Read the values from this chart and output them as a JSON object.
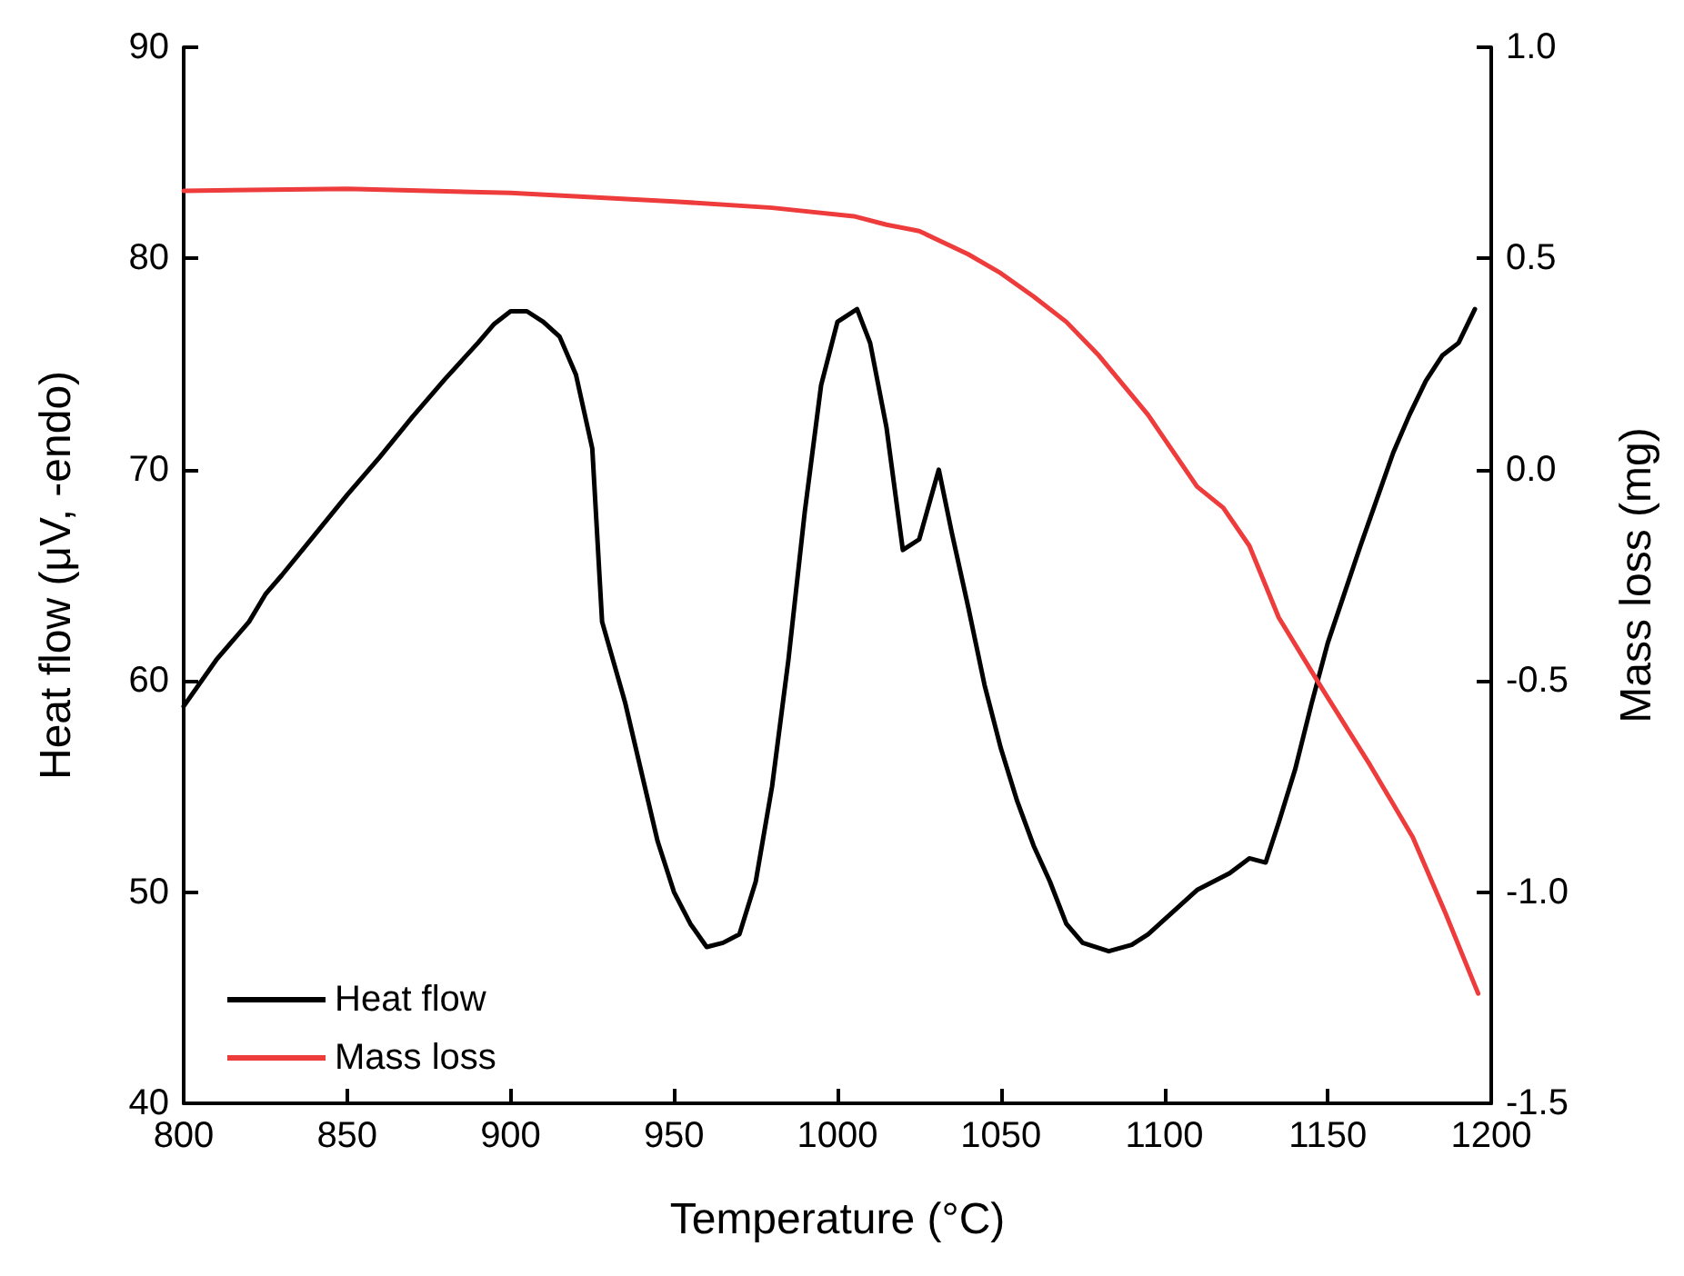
{
  "chart_data": {
    "type": "line",
    "xlabel": "Temperature (°C)",
    "ylabel": "Heat flow (μV, -endo)",
    "y2label": "Mass loss (mg)",
    "xlim": [
      800,
      1200
    ],
    "xticks": [
      800,
      850,
      900,
      950,
      1000,
      1050,
      1100,
      1150,
      1200
    ],
    "ylim": [
      40,
      90
    ],
    "yticks": [
      40,
      50,
      60,
      70,
      80,
      90
    ],
    "y2lim": [
      -1.5,
      1.0
    ],
    "y2ticks": [
      -1.5,
      {
        "value": -1,
        "label": "-1.0"
      },
      -0.5,
      {
        "value": 0,
        "label": "0.0"
      },
      0.5,
      {
        "value": 1,
        "label": "1.0"
      }
    ],
    "grid": false,
    "legend": "bottom left",
    "marker": "none",
    "line_style": "solid",
    "series": [
      {
        "name": "Heat flow",
        "color": "#000000",
        "x": [
          800,
          810,
          820,
          825,
          830,
          840,
          850,
          860,
          870,
          880,
          890,
          895,
          900,
          905,
          910,
          915,
          920,
          925,
          928,
          935,
          945,
          950,
          955,
          960,
          965,
          970,
          975,
          980,
          985,
          990,
          995,
          1000,
          1006,
          1010,
          1015,
          1020,
          1025,
          1031,
          1035,
          1040,
          1045,
          1050,
          1055,
          1060,
          1065,
          1070,
          1075,
          1083,
          1090,
          1095,
          1100,
          1105,
          1110,
          1115,
          1120,
          1126,
          1131,
          1135,
          1140,
          1145,
          1150,
          1155,
          1160,
          1165,
          1170,
          1175,
          1180,
          1185,
          1190,
          1195
        ],
        "values": [
          58.8,
          61.0,
          62.8,
          64.1,
          65.0,
          66.9,
          68.8,
          70.6,
          72.5,
          74.3,
          76.0,
          76.9,
          77.5,
          77.5,
          77.0,
          76.3,
          74.5,
          71.0,
          62.8,
          59.0,
          52.4,
          50.0,
          48.5,
          47.4,
          47.6,
          48.0,
          50.5,
          55.0,
          61.0,
          68.0,
          74.0,
          77.0,
          77.6,
          76.0,
          72.0,
          66.2,
          66.7,
          70.0,
          67.0,
          63.5,
          59.8,
          56.8,
          54.3,
          52.2,
          50.5,
          48.5,
          47.6,
          47.2,
          47.5,
          48.0,
          48.7,
          49.4,
          50.1,
          50.5,
          50.9,
          51.6,
          51.4,
          53.3,
          55.8,
          58.9,
          61.8,
          64.1,
          66.4,
          68.6,
          70.8,
          72.6,
          74.2,
          75.4,
          76.0,
          77.6
        ]
      },
      {
        "name": "Mass loss",
        "color": "#ee3b3b",
        "axis": "y2",
        "x": [
          800,
          850,
          900,
          950,
          980,
          1005,
          1015,
          1025,
          1040,
          1050,
          1060,
          1070,
          1080,
          1095,
          1110,
          1118,
          1126,
          1135,
          1148,
          1163,
          1176,
          1186,
          1196
        ],
        "values": [
          0.66,
          0.665,
          0.655,
          0.635,
          0.62,
          0.6,
          0.58,
          0.565,
          0.51,
          0.465,
          0.41,
          0.35,
          0.27,
          0.13,
          -0.04,
          -0.09,
          -0.18,
          -0.35,
          -0.515,
          -0.7,
          -0.87,
          -1.05,
          -1.24
        ]
      }
    ]
  }
}
